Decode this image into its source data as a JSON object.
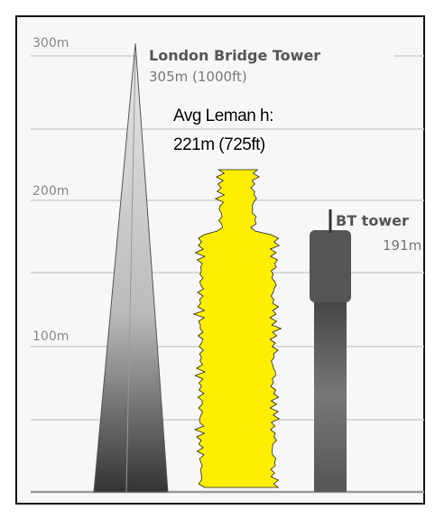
{
  "axis_labels": [
    "300m",
    "200m",
    "100m"
  ],
  "london_bridge_tower": {
    "name": "London Bridge Tower",
    "height": "305m (1000ft)"
  },
  "leman": {
    "label": "Avg Leman h:",
    "height": "221m (725ft)"
  },
  "bt_tower": {
    "name": "BT tower",
    "height": "191m"
  }
}
